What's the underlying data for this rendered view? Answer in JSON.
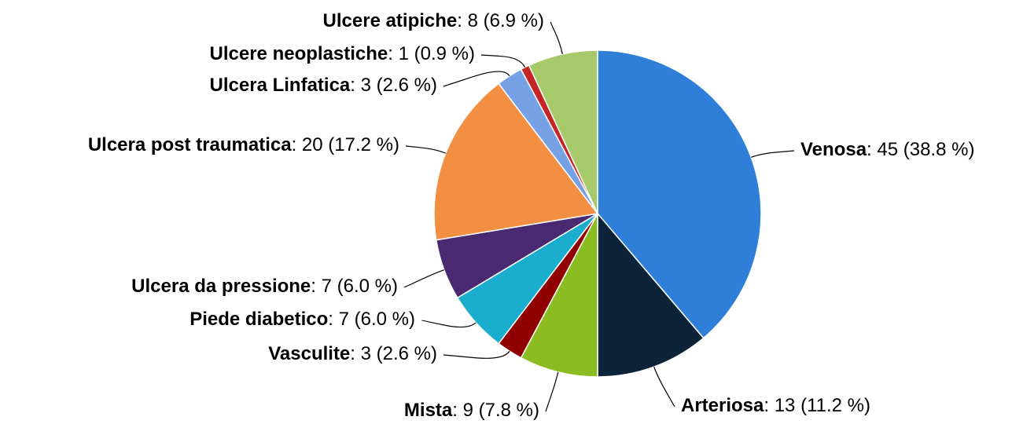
{
  "chart_data": {
    "type": "pie",
    "categories": [
      "Venosa",
      "Arteriosa",
      "Mista",
      "Vasculite",
      "Piede diabetico",
      "Ulcera da pressione",
      "Ulcera post traumatica",
      "Ulcera Linfatica",
      "Ulcere neoplastiche",
      "Ulcere atipiche"
    ],
    "values": [
      45,
      13,
      9,
      3,
      7,
      7,
      20,
      3,
      1,
      8
    ],
    "value_labels": [
      ": 45 (38.8 %)",
      ": 13 (11.2 %)",
      ": 9 (7.8 %)",
      ": 3 (2.6 %)",
      ": 7 (6.0 %)",
      ": 7 (6.0 %)",
      ": 20 (17.2 %)",
      ": 3 (2.6 %)",
      ": 1 (0.9 %)",
      ": 8 (6.9 %)"
    ],
    "colors": [
      "#2f7ed8",
      "#0d233a",
      "#8bbc21",
      "#910000",
      "#1aadce",
      "#492970",
      "#f28f43",
      "#77a1e5",
      "#c42525",
      "#a6c96a"
    ]
  }
}
